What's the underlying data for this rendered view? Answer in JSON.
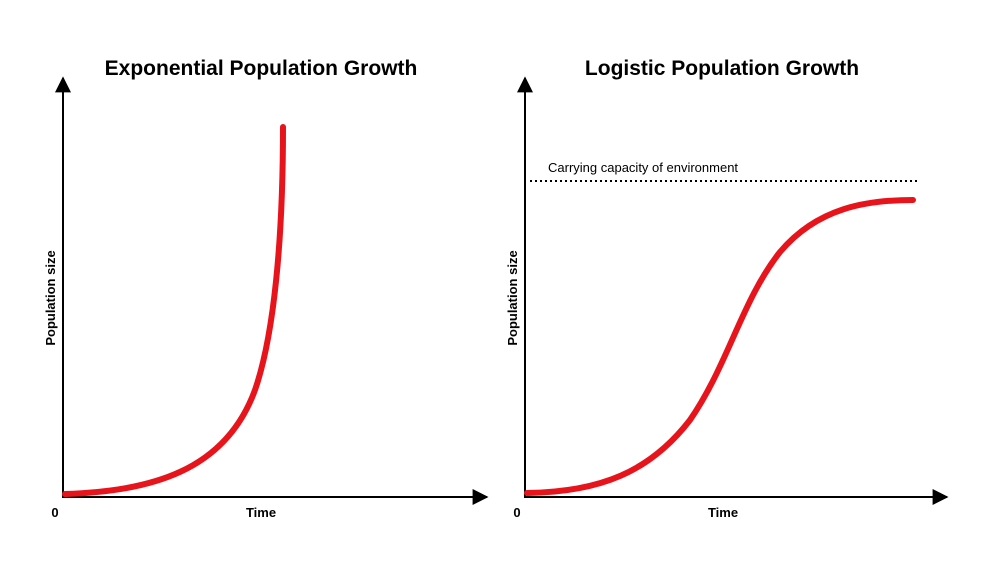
{
  "panels": [
    {
      "title": "Exponential Population Growth",
      "y_label": "Population size",
      "x_label": "Time",
      "origin": "0"
    },
    {
      "title": "Logistic Population Growth",
      "y_label": "Population size",
      "x_label": "Time",
      "origin": "0",
      "annotation": "Carrying capacity of environment"
    }
  ]
}
